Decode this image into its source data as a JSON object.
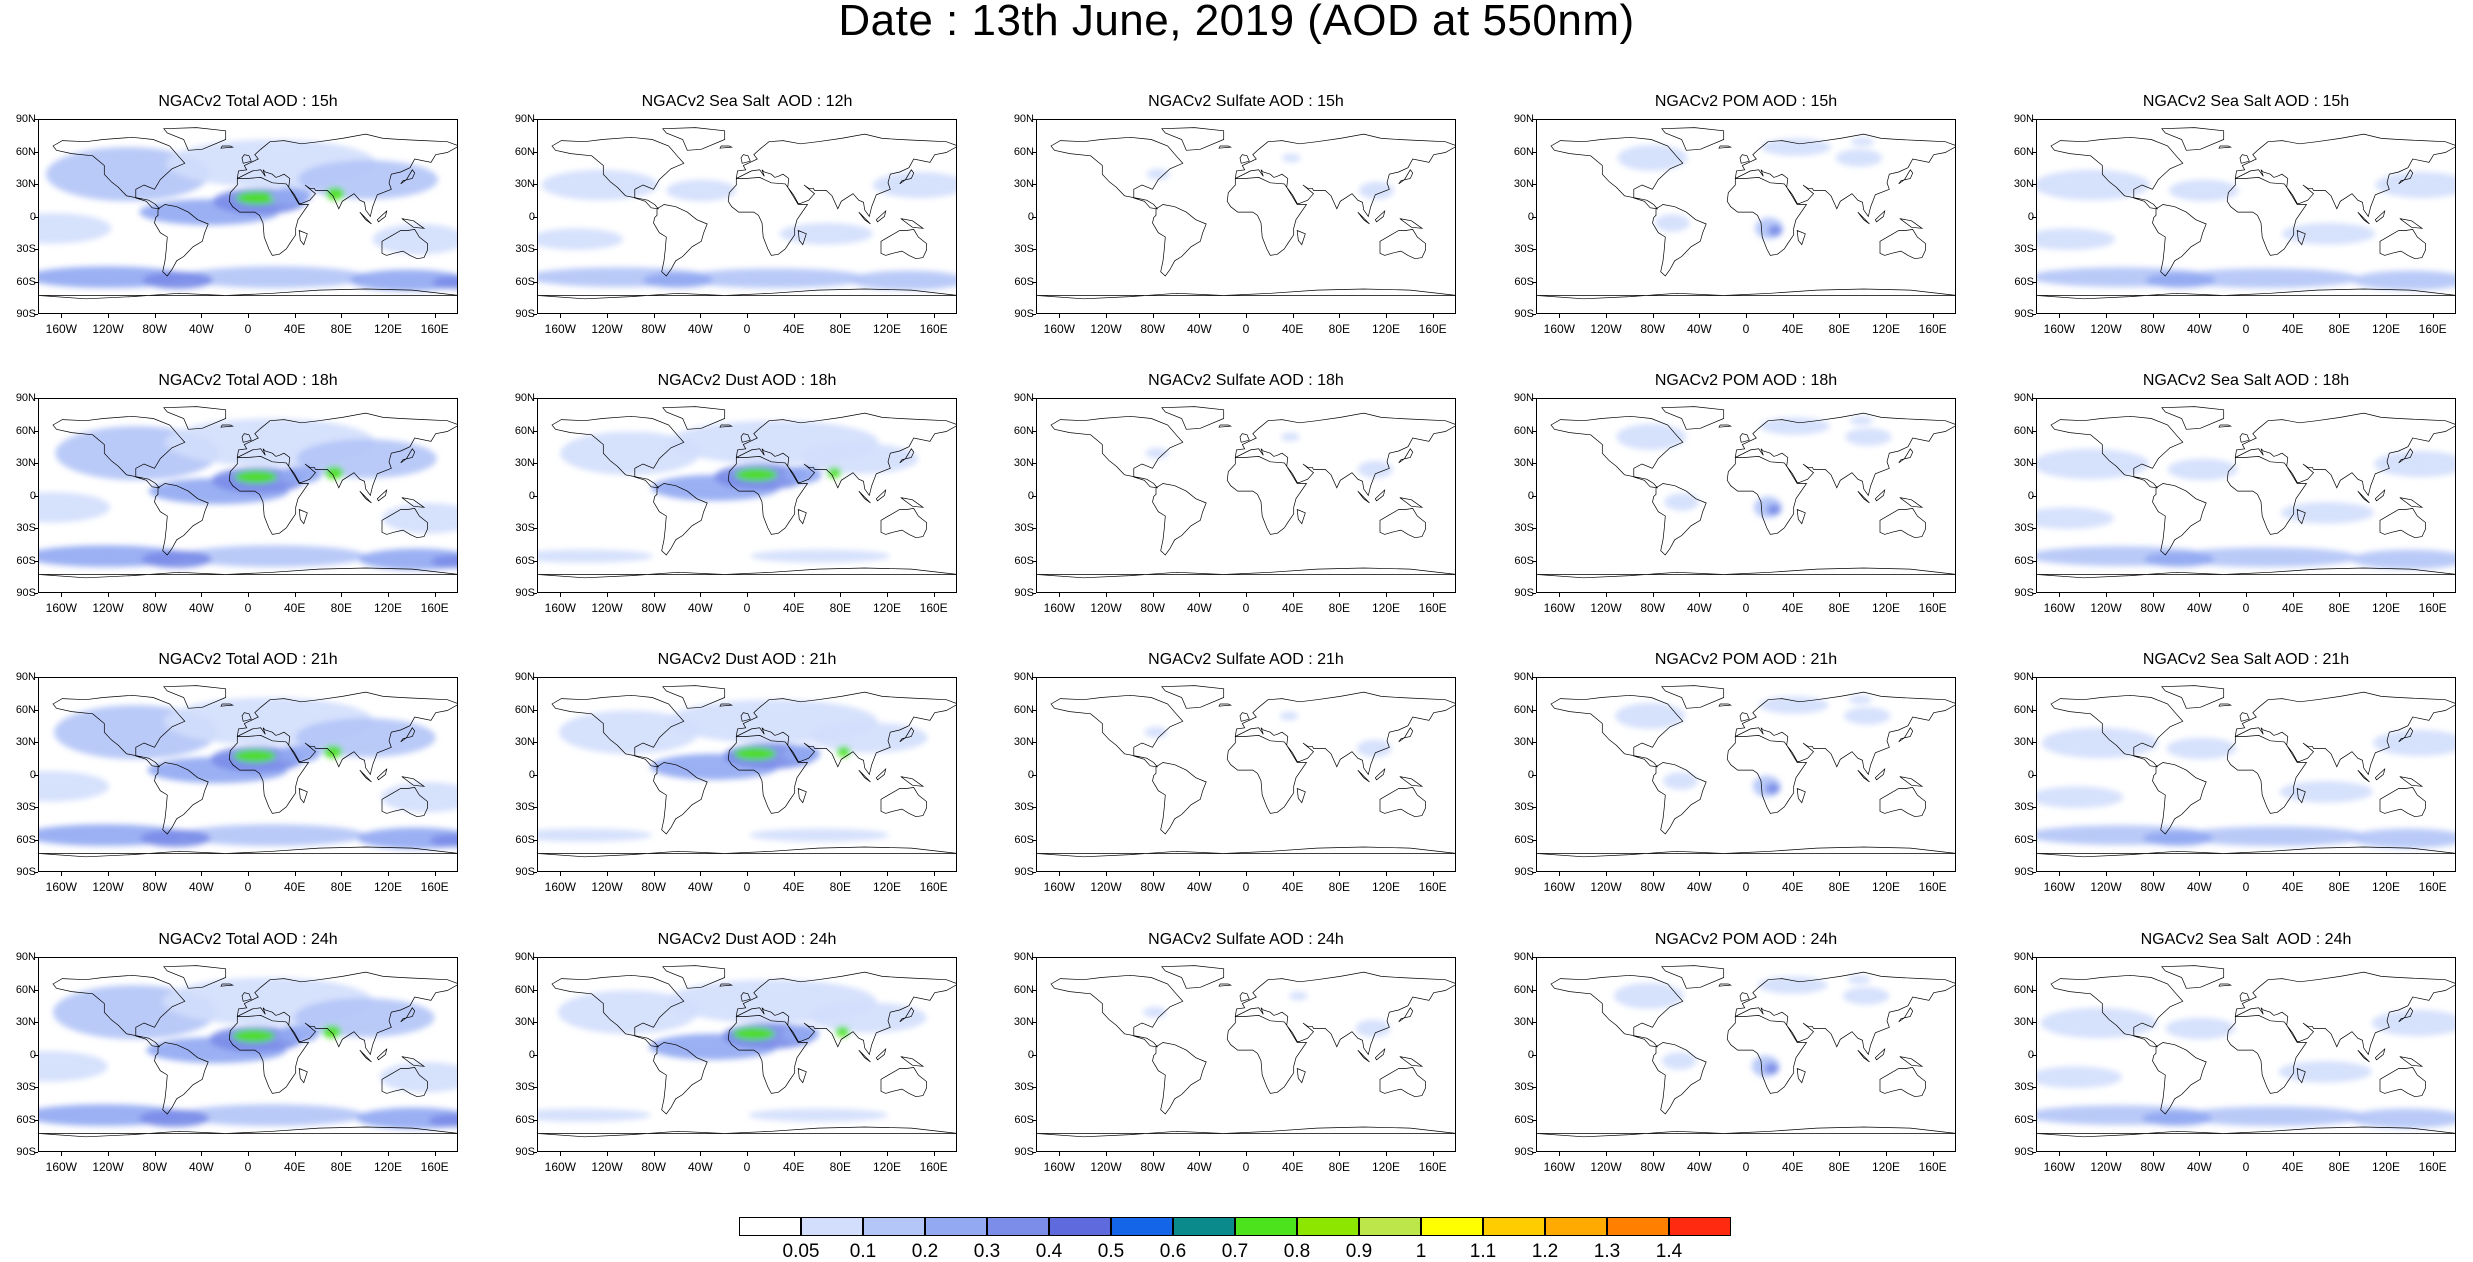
{
  "title": "Date : 13th June, 2019 (AOD at 550nm)",
  "lat_ticks": [
    "90N",
    "60N",
    "30N",
    "0",
    "30S",
    "60S",
    "90S"
  ],
  "lon_ticks": [
    "160W",
    "120W",
    "80W",
    "40W",
    "0",
    "40E",
    "80E",
    "120E",
    "160E"
  ],
  "panel_titles": [
    [
      "NGACv2 Total AOD : 15h",
      "NGACv2 Sea Salt  AOD : 12h",
      "NGACv2 Sulfate AOD : 15h",
      "NGACv2 POM AOD : 15h",
      "NGACv2 Sea Salt AOD : 15h"
    ],
    [
      "NGACv2 Total AOD : 18h",
      "NGACv2 Dust AOD : 18h",
      "NGACv2 Sulfate AOD : 18h",
      "NGACv2 POM AOD : 18h",
      "NGACv2 Sea Salt AOD : 18h"
    ],
    [
      "NGACv2 Total AOD : 21h",
      "NGACv2 Dust AOD : 21h",
      "NGACv2 Sulfate AOD : 21h",
      "NGACv2 POM AOD : 21h",
      "NGACv2 Sea Salt AOD : 21h"
    ],
    [
      "NGACv2 Total AOD : 24h",
      "NGACv2 Dust AOD : 24h",
      "NGACv2 Sulfate AOD : 24h",
      "NGACv2 POM AOD : 24h",
      "NGACv2 Sea Salt  AOD : 24h"
    ]
  ],
  "colorbar": {
    "labels": [
      "0.05",
      "0.1",
      "0.2",
      "0.3",
      "0.4",
      "0.5",
      "0.6",
      "0.7",
      "0.8",
      "0.9",
      "1",
      "1.1",
      "1.2",
      "1.3",
      "1.4"
    ],
    "colors": [
      "#ffffff",
      "#d3defc",
      "#b4c5f7",
      "#93a9f2",
      "#7b8de8",
      "#5f6bdd",
      "#1565e8",
      "#0a8a8a",
      "#4ce31c",
      "#8de600",
      "#bde64a",
      "#ffff00",
      "#ffcc00",
      "#ffaa00",
      "#ff7f00",
      "#ff2a10"
    ]
  }
}
